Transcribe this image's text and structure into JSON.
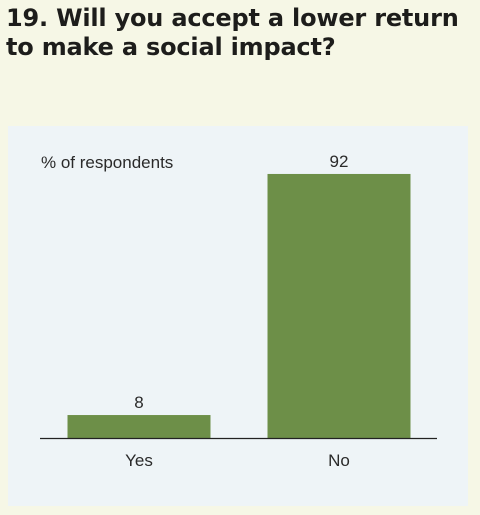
{
  "title": "19. Will you accept a lower return to make a social impact?",
  "chart_data": {
    "type": "bar",
    "unit_label": "% of respondents",
    "categories": [
      "Yes",
      "No"
    ],
    "values": [
      8,
      92
    ],
    "ylim": [
      0,
      100
    ],
    "grid": false,
    "bar_color": "#6d8f48",
    "axis_color": "#222222"
  }
}
